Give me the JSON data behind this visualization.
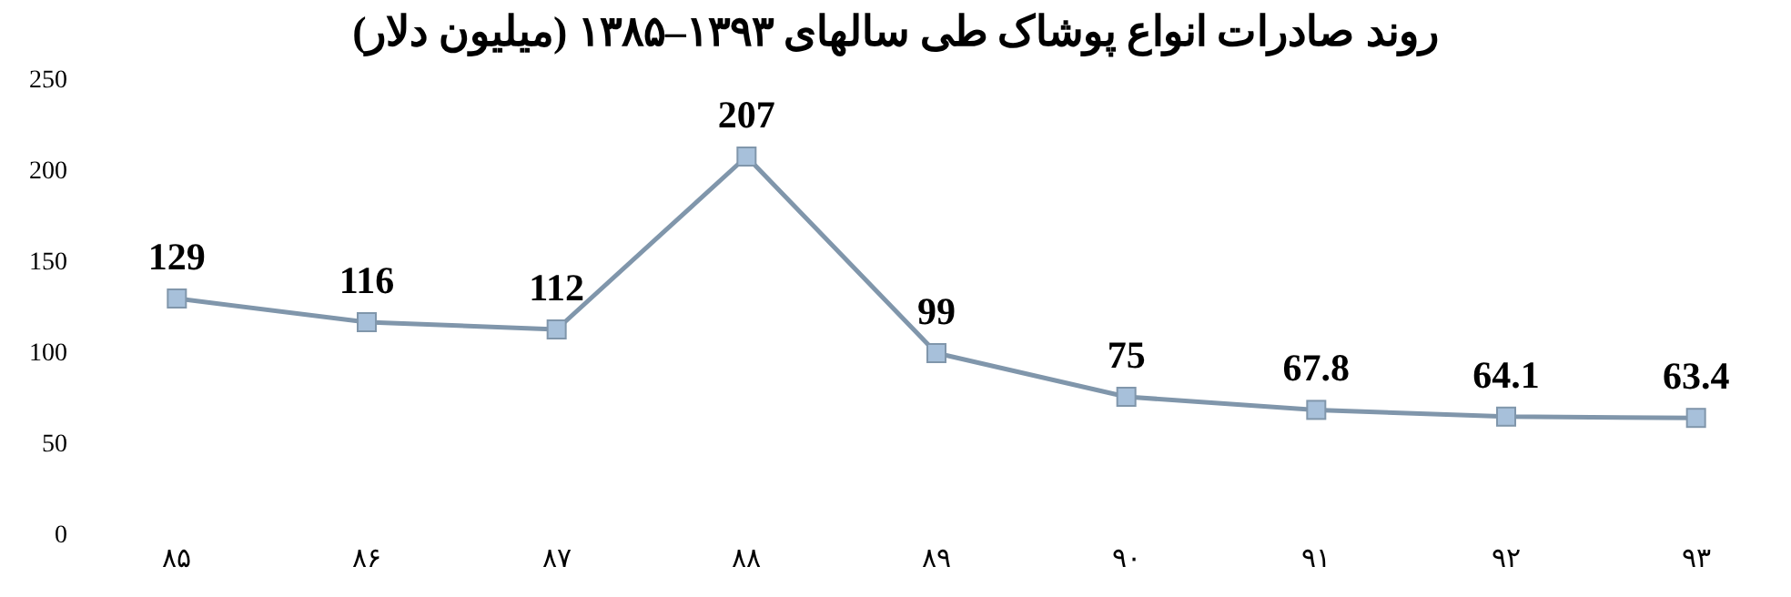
{
  "chart_data": {
    "type": "line",
    "title": "روند صادرات انواع پوشاک طی سالهای ۱۳۹۳–۱۳۸۵ (میلیون دلار)",
    "categories": [
      "۸۵",
      "۸۶",
      "۸۷",
      "۸۸",
      "۸۹",
      "۹۰",
      "۹۱",
      "۹۲",
      "۹۳"
    ],
    "series": [
      {
        "color": "#8096ab",
        "values": [
          129,
          116,
          112,
          207,
          99,
          75,
          67.8,
          64.1,
          63.4
        ]
      }
    ],
    "ylim": [
      0,
      250
    ],
    "yticks": [
      0,
      50,
      100,
      150,
      200,
      250
    ],
    "grid": false,
    "legend": false,
    "marker": "square",
    "line_style": "solid",
    "data_labels": true
  }
}
